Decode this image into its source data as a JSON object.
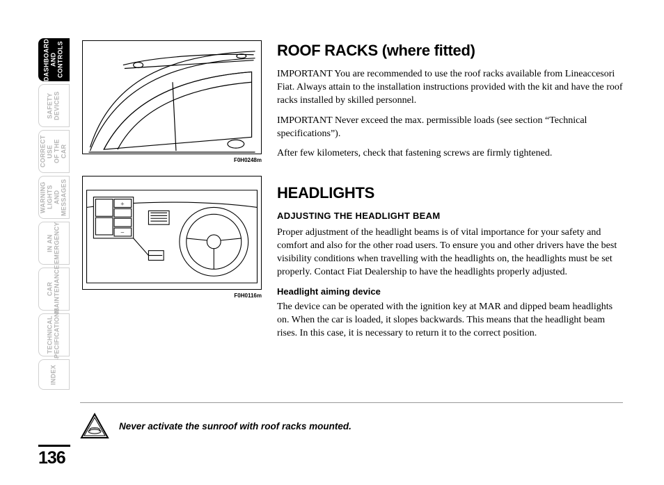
{
  "page_number": "136",
  "side_tabs": [
    {
      "label": "DASHBOARD\nAND CONTROLS",
      "active": true
    },
    {
      "label": "SAFETY\nDEVICES",
      "active": false
    },
    {
      "label": "CORRECT USE\nOF THE CAR",
      "active": false
    },
    {
      "label": "WARNING\nLIGHTS AND\nMESSAGES",
      "active": false
    },
    {
      "label": "IN AN\nEMERGENCY",
      "active": false
    },
    {
      "label": "CAR\nMAINTENANCE",
      "active": false
    },
    {
      "label": "TECHNICAL\nSPECIFICATIONS",
      "active": false
    },
    {
      "label": "INDEX",
      "active": false,
      "short": true
    }
  ],
  "figures": [
    {
      "caption": "F0H0248m",
      "type": "roof-rack-illustration"
    },
    {
      "caption": "F0H0116m",
      "type": "dashboard-illustration"
    }
  ],
  "sections": [
    {
      "heading": "ROOF RACKS (where fitted)",
      "paragraphs": [
        "IMPORTANT You are recommended to use the roof racks available from Lineaccesori Fiat. Always attain to the installation instructions provided with the kit and have the roof racks installed by skilled personnel.",
        "IMPORTANT Never exceed the max. permissible loads (see section “Technical specifications”).",
        "After few kilometers, check that fastening screws are firmly tightened."
      ]
    },
    {
      "heading": "HEADLIGHTS",
      "sub": [
        {
          "h2": "ADJUSTING THE HEADLIGHT BEAM",
          "p": "Proper adjustment of the headlight beams is of vital importance for your safety and comfort and also for the other road users. To ensure you and other drivers have the best visibility conditions when travelling with the headlights on, the headlights must be set properly. Contact Fiat Dealership to have the headlights properly adjusted."
        },
        {
          "h3": "Headlight aiming device",
          "p": "The device can be operated with the ignition key at MAR and dipped beam headlights on. When the car is loaded, it slopes backwards. This means that the headlight beam rises. In this case, it is necessary to return it to the correct position."
        }
      ]
    }
  ],
  "warning": "Never activate the sunroof with roof racks mounted.",
  "colors": {
    "text": "#000000",
    "inactive_tab": "#b5b5b5",
    "tab_border": "#d0d0d0",
    "rule": "#999999"
  },
  "typography": {
    "body_font": "Georgia / serif",
    "heading_font": "Arial / sans-serif",
    "h1_size_pt": 22,
    "body_size_pt": 14
  }
}
